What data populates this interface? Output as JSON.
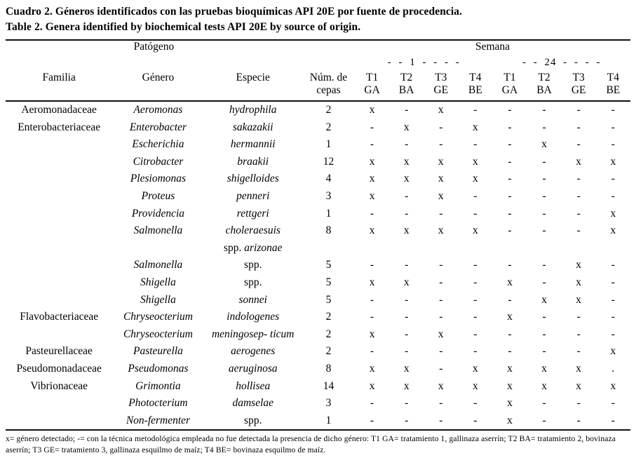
{
  "title_es": "Cuadro 2. Géneros identificados con las pruebas bioquímicas API 20E por fuente de procedencia.",
  "title_en": "Table 2. Genera identified by biochemical tests API 20E by source of origin.",
  "table": {
    "group_headers": {
      "patogeno": "Patógeno",
      "semana": "Semana",
      "week1": "- - 1 - - - -",
      "week24": "- - 24 - - - -"
    },
    "columns": {
      "familia": "Familia",
      "genero": "Género",
      "especie": "Especie",
      "num_line1": "Núm. de",
      "num_line2": "cepas",
      "treatments": [
        {
          "line1": "T1",
          "line2": "GA"
        },
        {
          "line1": "T2",
          "line2": "BA"
        },
        {
          "line1": "T3",
          "line2": "GE"
        },
        {
          "line1": "T4",
          "line2": "BE"
        },
        {
          "line1": "T1",
          "line2": "GA"
        },
        {
          "line1": "T2",
          "line2": "BA"
        },
        {
          "line1": "T3",
          "line2": "GE"
        },
        {
          "line1": "T4",
          "line2": "BE"
        }
      ]
    },
    "rows": [
      {
        "familia": "Aeromonadaceae",
        "genero": "Aeromonas",
        "especie": [
          [
            [
              "i",
              "hydrophila"
            ]
          ]
        ],
        "cepas": "2",
        "vals": [
          "x",
          "-",
          "x",
          "-",
          "-",
          "-",
          "-",
          "-"
        ]
      },
      {
        "familia": "Enterobacteriaceae",
        "genero": "Enterobacter",
        "especie": [
          [
            [
              "i",
              "sakazakii"
            ]
          ]
        ],
        "cepas": "2",
        "vals": [
          "-",
          "x",
          "-",
          "x",
          "-",
          "-",
          "-",
          "-"
        ]
      },
      {
        "familia": "",
        "genero": "Escherichia",
        "especie": [
          [
            [
              "i",
              "hermannii"
            ]
          ]
        ],
        "cepas": "1",
        "vals": [
          "-",
          "-",
          "-",
          "-",
          "-",
          "x",
          "-",
          "-"
        ]
      },
      {
        "familia": "",
        "genero": "Citrobacter",
        "especie": [
          [
            [
              "i",
              "braakii"
            ]
          ]
        ],
        "cepas": "12",
        "vals": [
          "x",
          "x",
          "x",
          "x",
          "-",
          "-",
          "x",
          "x"
        ]
      },
      {
        "familia": "",
        "genero": "Plesiomonas",
        "especie": [
          [
            [
              "i",
              "shigelloides"
            ]
          ]
        ],
        "cepas": "4",
        "vals": [
          "x",
          "x",
          "x",
          "x",
          "-",
          "-",
          "-",
          "-"
        ]
      },
      {
        "familia": "",
        "genero": "Proteus",
        "especie": [
          [
            [
              "i",
              "penneri"
            ]
          ]
        ],
        "cepas": "3",
        "vals": [
          "x",
          "-",
          "x",
          "-",
          "-",
          "-",
          "-",
          "-"
        ]
      },
      {
        "familia": "",
        "genero": "Providencia",
        "especie": [
          [
            [
              "i",
              "rettgeri"
            ]
          ]
        ],
        "cepas": "1",
        "vals": [
          "-",
          "-",
          "-",
          "-",
          "-",
          "-",
          "-",
          "x"
        ]
      },
      {
        "familia": "",
        "genero": "Salmonella",
        "especie": [
          [
            [
              "i",
              "choleraesuis"
            ]
          ],
          [
            [
              "r",
              "spp."
            ],
            [
              "i",
              "arizonae"
            ]
          ]
        ],
        "cepas": "8",
        "vals": [
          "x",
          "x",
          "x",
          "x",
          "-",
          "-",
          "-",
          "x"
        ]
      },
      {
        "familia": "",
        "genero": "Salmonella",
        "especie": [
          [
            [
              "r",
              "spp."
            ]
          ]
        ],
        "cepas": "5",
        "vals": [
          "-",
          "-",
          "-",
          "-",
          "-",
          "-",
          "x",
          "-"
        ]
      },
      {
        "familia": "",
        "genero": "Shigella",
        "especie": [
          [
            [
              "r",
              "spp."
            ]
          ]
        ],
        "cepas": "5",
        "vals": [
          "x",
          "x",
          "-",
          "-",
          "x",
          "-",
          "x",
          "-"
        ]
      },
      {
        "familia": "",
        "genero": "Shigella",
        "especie": [
          [
            [
              "i",
              "sonnei"
            ]
          ]
        ],
        "cepas": "5",
        "vals": [
          "-",
          "-",
          "-",
          "-",
          "-",
          "x",
          "x",
          "-"
        ]
      },
      {
        "familia": "Flavobacteriaceae",
        "genero": "Chryseocterium",
        "especie": [
          [
            [
              "i",
              "indologenes"
            ]
          ]
        ],
        "cepas": "2",
        "vals": [
          "-",
          "-",
          "-",
          "-",
          "x",
          "-",
          "-",
          "-"
        ]
      },
      {
        "familia": "",
        "genero": "Chryseocterium",
        "especie": [
          [
            [
              "i",
              "meningosep- ticum"
            ]
          ]
        ],
        "cepas": "2",
        "vals": [
          "x",
          "-",
          "x",
          "-",
          "-",
          "-",
          "-",
          "-"
        ]
      },
      {
        "familia": "Pasteurellaceae",
        "genero": "Pasteurella",
        "especie": [
          [
            [
              "i",
              "aerogenes"
            ]
          ]
        ],
        "cepas": "2",
        "vals": [
          "-",
          "-",
          "-",
          "-",
          "-",
          "-",
          "-",
          "x"
        ]
      },
      {
        "familia": "Pseudomonadaceae",
        "genero": "Pseudomonas",
        "especie": [
          [
            [
              "i",
              "aeruginosa"
            ]
          ]
        ],
        "cepas": "8",
        "vals": [
          "x",
          "x",
          "-",
          "x",
          "x",
          "x",
          "x",
          "."
        ]
      },
      {
        "familia": "Vibrionaceae",
        "genero": "Grimontia",
        "especie": [
          [
            [
              "i",
              "hollisea"
            ]
          ]
        ],
        "cepas": "14",
        "vals": [
          "x",
          "x",
          "x",
          "x",
          "x",
          "x",
          "x",
          "x"
        ]
      },
      {
        "familia": "",
        "genero": "Photocterium",
        "especie": [
          [
            [
              "i",
              "damselae"
            ]
          ]
        ],
        "cepas": "3",
        "vals": [
          "-",
          "-",
          "-",
          "-",
          "x",
          "-",
          "-",
          "-"
        ]
      },
      {
        "familia": "",
        "genero": "Non-fermenter",
        "especie": [
          [
            [
              "r",
              "spp."
            ]
          ]
        ],
        "cepas": "1",
        "vals": [
          "-",
          "-",
          "-",
          "-",
          "x",
          "-",
          "-",
          "-"
        ]
      }
    ]
  },
  "footnote": "x= género detectado; -= con la técnica metodológica empleada no fue detectada la presencia de dicho género: T1 GA= tratamiento 1, gallinaza aserrín; T2 BA= tratamiento 2, bovinaza aserrín; T3 GE= tratamiento 3, gallinaza esquilmo de maíz; T4 BE= bovinaza esquilmo de maíz."
}
